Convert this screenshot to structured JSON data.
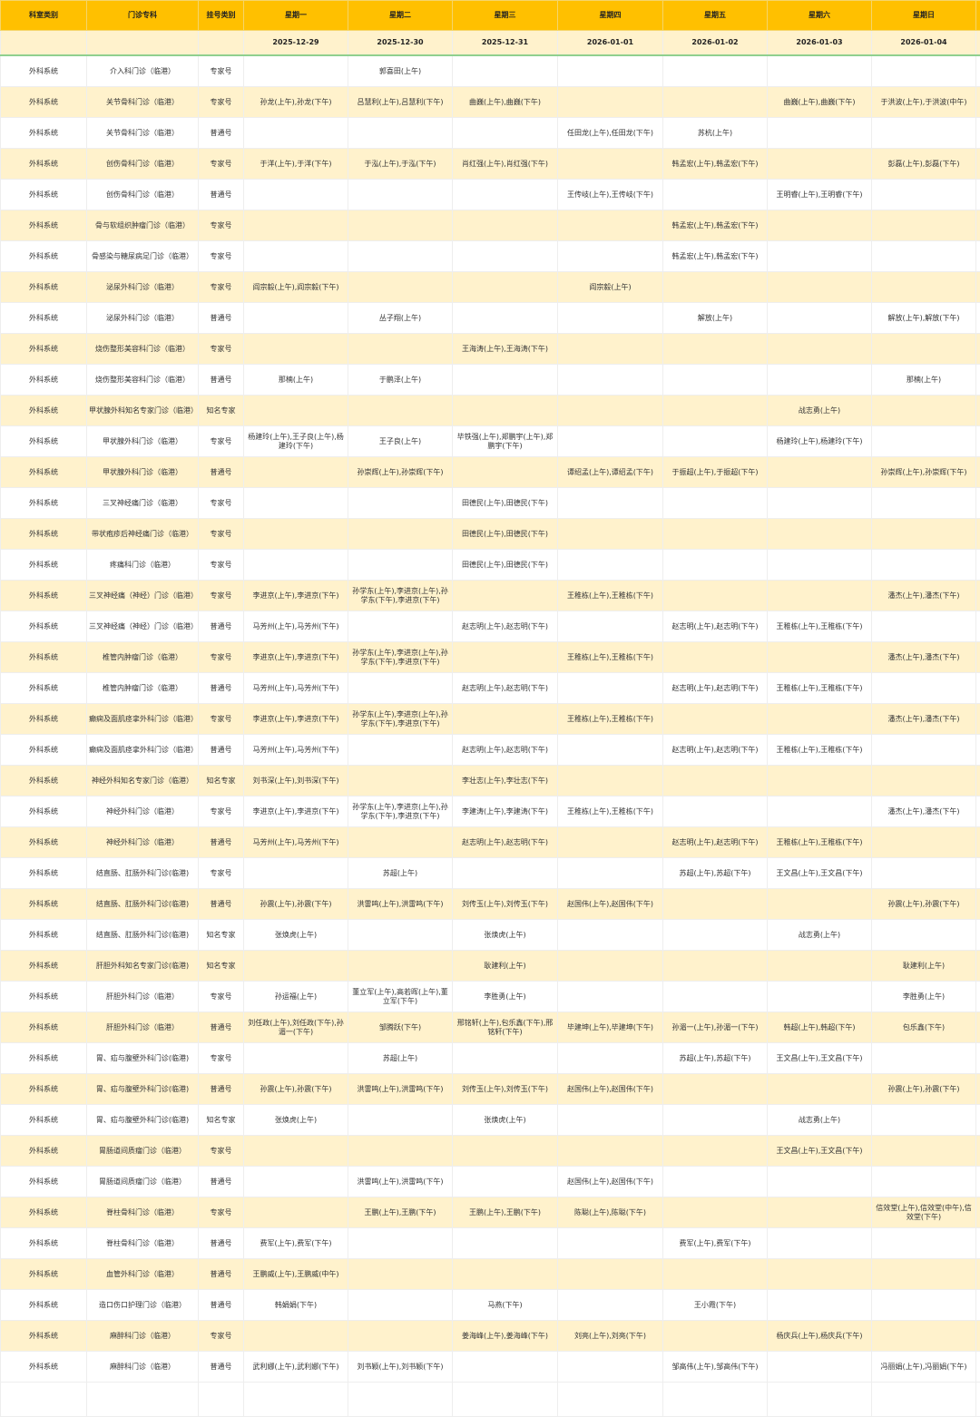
{
  "colors": {
    "header_bg": "#ffc000",
    "alt_row_bg": "#fff2cc",
    "divider": "#8fd08f"
  },
  "headers": [
    "科室类别",
    "门诊专科",
    "挂号类别",
    "星期一",
    "星期二",
    "星期三",
    "星期四",
    "星期五",
    "星期六",
    "星期日"
  ],
  "dates": [
    "2025-12-29",
    "2025-12-30",
    "2025-12-31",
    "2026-01-01",
    "2026-01-02",
    "2026-01-03",
    "2026-01-04"
  ],
  "rows": [
    [
      "外科系统",
      "介入科门诊（临港）",
      "专家号",
      "",
      "郭喜田(上午)",
      "",
      "",
      "",
      "",
      ""
    ],
    [
      "外科系统",
      "关节骨科门诊（临港）",
      "专家号",
      "孙龙(上午),孙龙(下午)",
      "吕慧利(上午),吕慧利(下午)",
      "曲巍(上午),曲巍(下午)",
      "",
      "",
      "曲巍(上午),曲巍(下午)",
      "于洪波(上午),于洪波(中午)"
    ],
    [
      "外科系统",
      "关节骨科门诊（临港）",
      "普通号",
      "",
      "",
      "",
      "任田龙(上午),任田龙(下午)",
      "苏杭(上午)",
      "",
      ""
    ],
    [
      "外科系统",
      "创伤骨科门诊（临港）",
      "专家号",
      "于洋(上午),于洋(下午)",
      "于泓(上午),于泓(下午)",
      "肖红强(上午),肖红强(下午)",
      "",
      "韩孟宏(上午),韩孟宏(下午)",
      "",
      "彭磊(上午),彭磊(下午)"
    ],
    [
      "外科系统",
      "创伤骨科门诊（临港）",
      "普通号",
      "",
      "",
      "",
      "王传岐(上午),王传岐(下午)",
      "",
      "王明睿(上午),王明睿(下午)",
      ""
    ],
    [
      "外科系统",
      "骨与软组织肿瘤门诊（临港）",
      "专家号",
      "",
      "",
      "",
      "",
      "韩孟宏(上午),韩孟宏(下午)",
      "",
      ""
    ],
    [
      "外科系统",
      "骨感染与糖尿病足门诊（临港）",
      "专家号",
      "",
      "",
      "",
      "",
      "韩孟宏(上午),韩孟宏(下午)",
      "",
      ""
    ],
    [
      "外科系统",
      "泌尿外科门诊（临港）",
      "专家号",
      "阎宗毅(上午),阎宗毅(下午)",
      "",
      "",
      "阎宗毅(上午)",
      "",
      "",
      ""
    ],
    [
      "外科系统",
      "泌尿外科门诊（临港）",
      "普通号",
      "",
      "丛子翔(上午)",
      "",
      "",
      "解放(上午)",
      "",
      "解放(上午),解放(下午)"
    ],
    [
      "外科系统",
      "烧伤整形美容科门诊（临港）",
      "专家号",
      "",
      "",
      "王海涛(上午),王海涛(下午)",
      "",
      "",
      "",
      ""
    ],
    [
      "外科系统",
      "烧伤整形美容科门诊（临港）",
      "普通号",
      "那楠(上午)",
      "于鹏泽(上午)",
      "",
      "",
      "",
      "",
      "那楠(上午)"
    ],
    [
      "外科系统",
      "甲状腺外科知名专家门诊（临港）",
      "知名专家",
      "",
      "",
      "",
      "",
      "",
      "战志勇(上午)",
      ""
    ],
    [
      "外科系统",
      "甲状腺外科门诊（临港）",
      "专家号",
      "杨建玲(上午),王子良(上午),杨建玲(下午)",
      "王子良(上午)",
      "毕铁强(上午),郑鹏宇(上午),郑鹏宇(下午)",
      "",
      "",
      "杨建玲(上午),杨建玲(下午)",
      ""
    ],
    [
      "外科系统",
      "甲状腺外科门诊（临港）",
      "普通号",
      "",
      "孙崇辉(上午),孙崇辉(下午)",
      "",
      "谭绍孟(上午),谭绍孟(下午)",
      "于振超(上午),于振超(下午)",
      "",
      "孙崇辉(上午),孙崇辉(下午)"
    ],
    [
      "外科系统",
      "三叉神经痛门诊（临港）",
      "专家号",
      "",
      "",
      "田德民(上午),田德民(下午)",
      "",
      "",
      "",
      ""
    ],
    [
      "外科系统",
      "带状疱疹后神经痛门诊（临港）",
      "专家号",
      "",
      "",
      "田德民(上午),田德民(下午)",
      "",
      "",
      "",
      ""
    ],
    [
      "外科系统",
      "疼痛科门诊（临港）",
      "专家号",
      "",
      "",
      "田德民(上午),田德民(下午)",
      "",
      "",
      "",
      ""
    ],
    [
      "外科系统",
      "三叉神经痛（神经）门诊（临港）",
      "专家号",
      "李进京(上午),李进京(下午)",
      "孙学东(上午),李进京(上午),孙学东(下午),李进京(下午)",
      "",
      "王稚栋(上午),王稚栋(下午)",
      "",
      "",
      "潘杰(上午),潘杰(下午)"
    ],
    [
      "外科系统",
      "三叉神经痛（神经）门诊（临港）",
      "普通号",
      "马芳州(上午),马芳州(下午)",
      "",
      "赵志明(上午),赵志明(下午)",
      "",
      "赵志明(上午),赵志明(下午)",
      "王稚栋(上午),王稚栋(下午)",
      ""
    ],
    [
      "外科系统",
      "椎管内肿瘤门诊（临港）",
      "专家号",
      "李进京(上午),李进京(下午)",
      "孙学东(上午),李进京(上午),孙学东(下午),李进京(下午)",
      "",
      "王稚栋(上午),王稚栋(下午)",
      "",
      "",
      "潘杰(上午),潘杰(下午)"
    ],
    [
      "外科系统",
      "椎管内肿瘤门诊（临港）",
      "普通号",
      "马芳州(上午),马芳州(下午)",
      "",
      "赵志明(上午),赵志明(下午)",
      "",
      "赵志明(上午),赵志明(下午)",
      "王稚栋(上午),王稚栋(下午)",
      ""
    ],
    [
      "外科系统",
      "癫痫及面肌痉挛外科门诊（临港）",
      "专家号",
      "李进京(上午),李进京(下午)",
      "孙学东(上午),李进京(上午),孙学东(下午),李进京(下午)",
      "",
      "王稚栋(上午),王稚栋(下午)",
      "",
      "",
      "潘杰(上午),潘杰(下午)"
    ],
    [
      "外科系统",
      "癫痫及面肌痉挛外科门诊（临港）",
      "普通号",
      "马芳州(上午),马芳州(下午)",
      "",
      "赵志明(上午),赵志明(下午)",
      "",
      "赵志明(上午),赵志明(下午)",
      "王稚栋(上午),王稚栋(下午)",
      ""
    ],
    [
      "外科系统",
      "神经外科知名专家门诊（临港）",
      "知名专家",
      "刘书深(上午),刘书深(下午)",
      "",
      "李壮志(上午),李壮志(下午)",
      "",
      "",
      "",
      ""
    ],
    [
      "外科系统",
      "神经外科门诊（临港）",
      "专家号",
      "李进京(上午),李进京(下午)",
      "孙学东(上午),李进京(上午),孙学东(下午),李进京(下午)",
      "李建涛(上午),李建涛(下午)",
      "王稚栋(上午),王稚栋(下午)",
      "",
      "",
      "潘杰(上午),潘杰(下午)"
    ],
    [
      "外科系统",
      "神经外科门诊（临港）",
      "普通号",
      "马芳州(上午),马芳州(下午)",
      "",
      "赵志明(上午),赵志明(下午)",
      "",
      "赵志明(上午),赵志明(下午)",
      "王稚栋(上午),王稚栋(下午)",
      ""
    ],
    [
      "外科系统",
      "结直肠、肛肠外科门诊(临港)",
      "专家号",
      "",
      "苏超(上午)",
      "",
      "",
      "苏超(上午),苏超(下午)",
      "王文昌(上午),王文昌(下午)",
      ""
    ],
    [
      "外科系统",
      "结直肠、肛肠外科门诊(临港)",
      "普通号",
      "孙震(上午),孙震(下午)",
      "洪雷鸣(上午),洪雷鸣(下午)",
      "刘传玉(上午),刘传玉(下午)",
      "赵国伟(上午),赵国伟(下午)",
      "",
      "",
      "孙震(上午),孙震(下午)"
    ],
    [
      "外科系统",
      "结直肠、肛肠外科门诊(临港)",
      "知名专家",
      "张焕虎(上午)",
      "",
      "张焕虎(上午)",
      "",
      "",
      "战志勇(上午)",
      ""
    ],
    [
      "外科系统",
      "肝胆外科知名专家门诊(临港)",
      "知名专家",
      "",
      "",
      "耿建利(上午)",
      "",
      "",
      "",
      "耿建利(上午)"
    ],
    [
      "外科系统",
      "肝胆外科门诊（临港）",
      "专家号",
      "孙运福(上午)",
      "董立军(上午),高若晖(上午),董立军(下午)",
      "李胜勇(上午)",
      "",
      "",
      "",
      "李胜勇(上午)"
    ],
    [
      "外科系统",
      "肝胆外科门诊（临港）",
      "普通号",
      "刘任政(上午),刘任政(下午),孙湄一(下午)",
      "邹腾跃(下午)",
      "邢铭轩(上午),包乐鑫(下午),邢铭轩(下午)",
      "毕建坤(上午),毕建坤(下午)",
      "孙湄一(上午),孙湄一(下午)",
      "韩超(上午),韩超(下午)",
      "包乐鑫(下午)"
    ],
    [
      "外科系统",
      "胃、疝与腹壁外科门诊(临港)",
      "专家号",
      "",
      "苏超(上午)",
      "",
      "",
      "苏超(上午),苏超(下午)",
      "王文昌(上午),王文昌(下午)",
      ""
    ],
    [
      "外科系统",
      "胃、疝与腹壁外科门诊(临港)",
      "普通号",
      "孙震(上午),孙震(下午)",
      "洪雷鸣(上午),洪雷鸣(下午)",
      "刘传玉(上午),刘传玉(下午)",
      "赵国伟(上午),赵国伟(下午)",
      "",
      "",
      "孙震(上午),孙震(下午)"
    ],
    [
      "外科系统",
      "胃、疝与腹壁外科门诊(临港)",
      "知名专家",
      "张焕虎(上午)",
      "",
      "张焕虎(上午)",
      "",
      "",
      "战志勇(上午)",
      ""
    ],
    [
      "外科系统",
      "胃肠道间质瘤门诊（临港）",
      "专家号",
      "",
      "",
      "",
      "",
      "",
      "王文昌(上午),王文昌(下午)",
      ""
    ],
    [
      "外科系统",
      "胃肠道间质瘤门诊（临港）",
      "普通号",
      "",
      "洪雷鸣(上午),洪雷鸣(下午)",
      "",
      "赵国伟(上午),赵国伟(下午)",
      "",
      "",
      ""
    ],
    [
      "外科系统",
      "脊柱骨科门诊（临港）",
      "专家号",
      "",
      "王鹏(上午),王鹏(下午)",
      "王鹏(上午),王鹏(下午)",
      "陈聪(上午),陈聪(下午)",
      "",
      "",
      "信效堂(上午),信效堂(中午),信效堂(下午)"
    ],
    [
      "外科系统",
      "脊柱骨科门诊（临港）",
      "普通号",
      "费军(上午),费军(下午)",
      "",
      "",
      "",
      "费军(上午),费军(下午)",
      "",
      ""
    ],
    [
      "外科系统",
      "血管外科门诊（临港）",
      "普通号",
      "王鹏威(上午),王鹏威(中午)",
      "",
      "",
      "",
      "",
      "",
      ""
    ],
    [
      "外科系统",
      "造口伤口护理门诊（临港）",
      "普通号",
      "韩娟娟(下午)",
      "",
      "马燕(下午)",
      "",
      "王小霞(下午)",
      "",
      ""
    ],
    [
      "外科系统",
      "麻醉科门诊（临港）",
      "专家号",
      "",
      "",
      "姜海峰(上午),姜海峰(下午)",
      "刘亮(上午),刘亮(下午)",
      "",
      "杨庆兵(上午),杨庆兵(下午)",
      ""
    ],
    [
      "外科系统",
      "麻醉科门诊（临港）",
      "普通号",
      "武利娜(上午),武利娜(下午)",
      "刘书颖(上午),刘书颖(下午)",
      "",
      "",
      "邹高伟(上午),邹高伟(下午)",
      "",
      "冯丽娟(上午),冯丽娟(下午)"
    ]
  ]
}
